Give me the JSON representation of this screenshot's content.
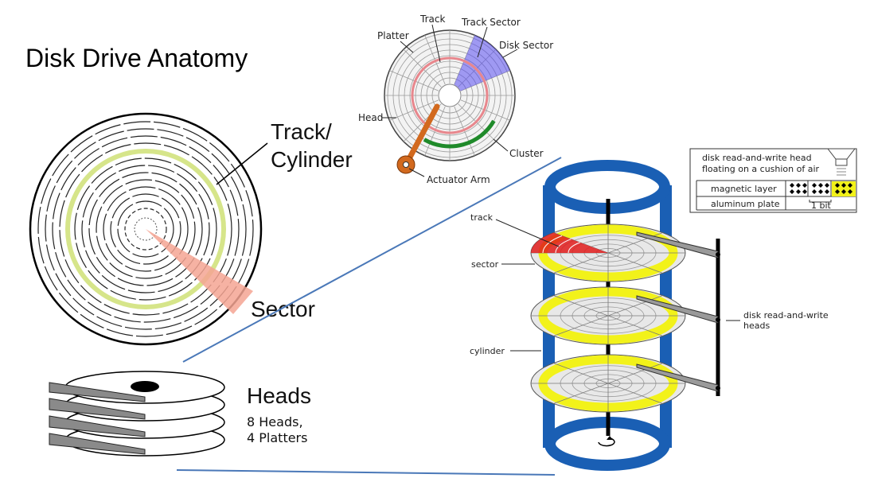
{
  "title": "Disk Drive Anatomy",
  "left_diagram": {
    "track_label_line1": "Track/",
    "track_label_line2": "Cylinder",
    "sector_label": "Sector"
  },
  "heads_diagram": {
    "heads_label": "Heads",
    "heads_count": "8 Heads,",
    "platters_count": "4 Platters"
  },
  "top_diagram": {
    "track": "Track",
    "track_sector": "Track Sector",
    "platter": "Platter",
    "disk_sector": "Disk Sector",
    "head": "Head",
    "cluster": "Cluster",
    "actuator_arm": "Actuator Arm"
  },
  "right_diagram": {
    "track": "track",
    "sector": "sector",
    "cylinder": "cylinder",
    "heads_label_line1": "disk read-and-write",
    "heads_label_line2": "heads",
    "inset": {
      "head_line1": "disk read-and-write head",
      "head_line2": "floating on a cushion of air",
      "magnetic_layer": "magnetic layer",
      "aluminum_plate": "aluminum plate",
      "bit": "1 bit"
    }
  },
  "colors": {
    "sector_salmon": "#f4a493",
    "track_yellow": "#e8f0a0",
    "cylinder_blue": "#1a5fb4",
    "disk_sector_purple": "#5a4ff0",
    "cluster_green": "#1f8a2a",
    "actuator_orange": "#d2691e",
    "platter_yellow": "#f2f21a",
    "sector_red": "#e01b1b",
    "connector_line": "#4a78b8"
  }
}
